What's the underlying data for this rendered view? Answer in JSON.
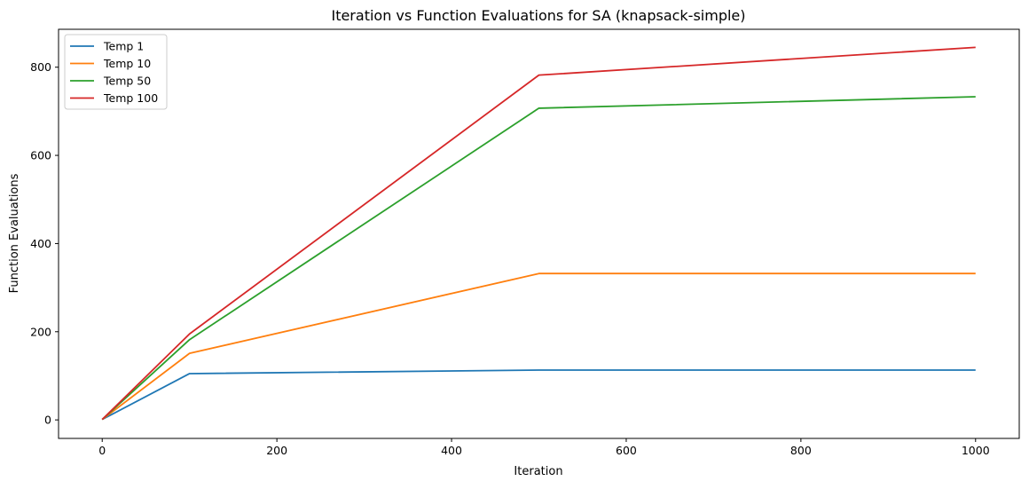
{
  "chart_data": {
    "type": "line",
    "title": "Iteration vs Function Evaluations for SA (knapsack-simple)",
    "xlabel": "Iteration",
    "ylabel": "Function Evaluations",
    "x": [
      0,
      100,
      500,
      1000
    ],
    "xlim": [
      -50,
      1050
    ],
    "ylim": [
      -42,
      886
    ],
    "xticks": [
      0,
      200,
      400,
      600,
      800,
      1000
    ],
    "yticks": [
      0,
      200,
      400,
      600,
      800
    ],
    "grid": false,
    "legend_position": "top-left",
    "series": [
      {
        "name": "Temp 1",
        "color": "#1f77b4",
        "values": [
          1,
          105,
          113,
          113
        ]
      },
      {
        "name": "Temp 10",
        "color": "#ff7f0e",
        "values": [
          1,
          151,
          332,
          332
        ]
      },
      {
        "name": "Temp 50",
        "color": "#2ca02c",
        "values": [
          1,
          182,
          707,
          733
        ]
      },
      {
        "name": "Temp 100",
        "color": "#d62728",
        "values": [
          1,
          195,
          782,
          845
        ]
      }
    ]
  }
}
